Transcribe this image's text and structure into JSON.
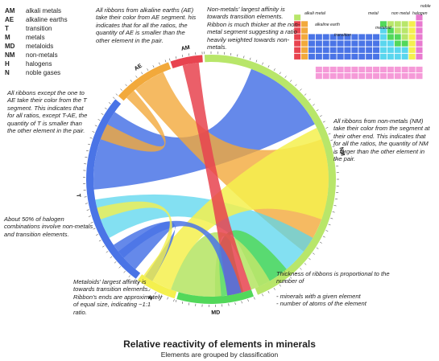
{
  "legend": [
    {
      "abbr": "AM",
      "name": "alkali metals"
    },
    {
      "abbr": "AE",
      "name": "alkaline earths"
    },
    {
      "abbr": "T",
      "name": "transition"
    },
    {
      "abbr": "M",
      "name": "metals"
    },
    {
      "abbr": "MD",
      "name": "metaloids"
    },
    {
      "abbr": "NM",
      "name": "non-metals"
    },
    {
      "abbr": "H",
      "name": "halogens"
    },
    {
      "abbr": "N",
      "name": "noble gases"
    }
  ],
  "notes": {
    "ae": "All ribbons from alkaline earths (AE) take their color from AE segment. his indicates that for all the ratios, the quantity of AE is smaller than the other element in the pair.",
    "nm_affinity": "Non-metals' largest affinity is towards transition elements. Ribbon is much thicker at the non-metal segment suggesting a ratio heavily weighted towards non-metals.",
    "t": "All ribbons except the one to AE take their color from the T segment. This indicates that for all ratios, except T-AE, the quantity of T is smaller than the other element in the pair.",
    "nm": "All ribbons from non-metals (NM) take their color from the segment at their other end. This indicates that for all the ratios, the quantity of NM is larger than the other element in the pair.",
    "halogen": "About 50% of  halogen combinations involve non-metals and transition elements.",
    "md": "Metaloids' largest affinity is towards transition elements. Ribbon's ends are approximately of equal size, indicating ~1:1 ratio.",
    "thickness": "Thickness of ribbons is proportional to the number of",
    "thickness_items": [
      "- minerals with a given element",
      "- number of atoms of the element"
    ]
  },
  "segment_labels": [
    "AM",
    "AE",
    "T",
    "H",
    "MD",
    "NM"
  ],
  "periodic_table_labels": {
    "alkali_metal": "alkali metal",
    "alkaline_earth": "alkaline earth",
    "transition": "transition",
    "metaloid": "metaloid",
    "non_metal": "non metal",
    "halogen": "halogen",
    "noble": "noble",
    "metal": "metal"
  },
  "colors": {
    "AM": "#e8434f",
    "AE": "#f2a93b",
    "T": "#4a74e6",
    "M": "#5ad6ee",
    "MD": "#52d85a",
    "NM": "#b8e66a",
    "H": "#f4f04e",
    "N": "#e87ad0",
    "lanthanide": "#f59ad8"
  },
  "title": "Relative reactivity of elements in minerals",
  "subtitle": "Elements are grouped by classification"
}
